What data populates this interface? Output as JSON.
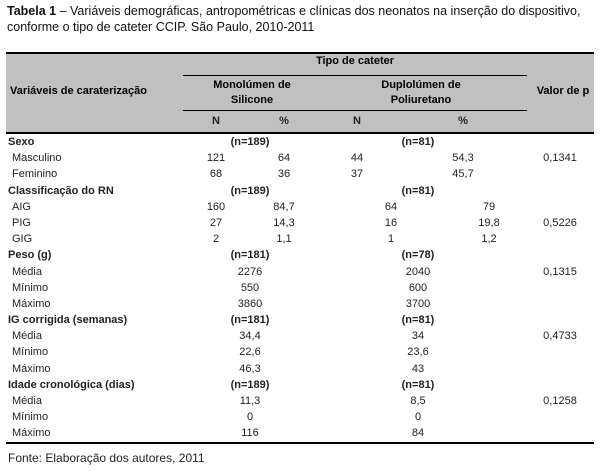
{
  "title": {
    "label": "Tabela 1",
    "rest": "– Variáveis demográficas, antropométricas e clínicas dos neonatos na inserção do dispositivo, conforme o tipo de cateter CCIP. São Paulo, 2010-2011"
  },
  "header": {
    "row_label": "Variáveis de caraterização",
    "group_title": "Tipo de cateter",
    "col1_line1": "Monolúmen de",
    "col1_line2": "Silicone",
    "col2_line1": "Duplolúmen de",
    "col2_line2": "Poliuretano",
    "p_label": "Valor de p",
    "sub": [
      "N",
      "%",
      "N",
      "%"
    ]
  },
  "sections": [
    {
      "title": "Sexo",
      "n_sil": "(n=189)",
      "n_poli": "(n=81)",
      "rows": [
        {
          "label": "Masculino",
          "n_sil": "121",
          "pct_sil": "64",
          "n_poli": "44",
          "pct_poli": "54,3",
          "p_value": "0,1341"
        },
        {
          "label": "Feminino",
          "n_sil": "68",
          "pct_sil": "36",
          "n_poli": "37",
          "pct_poli": "45,7"
        }
      ]
    },
    {
      "title": "Classificação do RN",
      "n_sil": "(n=189)",
      "n_poli": "(n=81)",
      "rows": [
        {
          "label": "AIG",
          "n_sil": "160",
          "pct_sil": "84,7",
          "n_poli": "64",
          "pct_poli": "79"
        },
        {
          "label": "PIG",
          "n_sil": "27",
          "pct_sil": "14,3",
          "n_poli": "16",
          "pct_poli": "19,8",
          "p_value": "0,5226"
        },
        {
          "label": "GIG",
          "n_sil": "2",
          "pct_sil": "1,1",
          "n_poli": "1",
          "pct_poli": "1,2"
        }
      ]
    },
    {
      "title": "Peso (g)",
      "n_sil": "(n=181)",
      "n_poli": "(n=78)",
      "rows": [
        {
          "label": "Média",
          "val_sil": "2276",
          "val_poli": "2040",
          "p_value": "0,1315"
        },
        {
          "label": "Mínimo",
          "val_sil": "550",
          "val_poli": "600"
        },
        {
          "label": "Máximo",
          "val_sil": "3860",
          "val_poli": "3700"
        }
      ]
    },
    {
      "title": "IG corrigida (semanas)",
      "n_sil": "(n=181)",
      "n_poli": "(n=81)",
      "rows": [
        {
          "label": "Média",
          "val_sil": "34,4",
          "val_poli": "34",
          "p_value": "0,4733"
        },
        {
          "label": "Mínimo",
          "val_sil": "22,6",
          "val_poli": "23,6"
        },
        {
          "label": "Máximo",
          "val_sil": "46,3",
          "val_poli": "43"
        }
      ]
    },
    {
      "title": "Idade cronológica (dias)",
      "n_sil": "(n=189)",
      "n_poli": "(n=81)",
      "rows": [
        {
          "label": "Média",
          "val_sil": "11,3",
          "val_poli": "8,5",
          "p_value": "0,1258"
        },
        {
          "label": "Mínimo",
          "val_sil": "0",
          "val_poli": "0"
        },
        {
          "label": "Máximo",
          "val_sil": "116",
          "val_poli": "84"
        }
      ]
    }
  ],
  "footer": {
    "source": "Fonte: Elaboração dos autores, 2011"
  },
  "colors": {
    "header_bg": "#c0c0c0",
    "border": "#000000",
    "text": "#222222"
  }
}
